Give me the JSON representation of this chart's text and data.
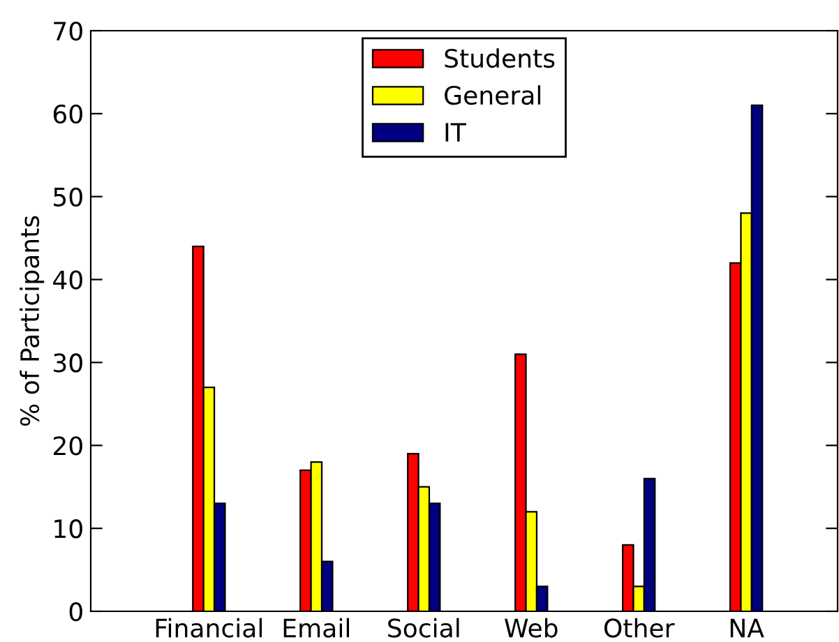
{
  "chart_data": {
    "type": "bar",
    "ylabel": "% of Participants",
    "categories": [
      "Financial",
      "Email",
      "Social",
      "Web",
      "Other",
      "NA"
    ],
    "series": [
      {
        "name": "Students",
        "color": "#ff0000",
        "values": [
          44,
          17,
          19,
          31,
          8,
          42
        ]
      },
      {
        "name": "General",
        "color": "#ffff00",
        "values": [
          27,
          18,
          15,
          12,
          3,
          48
        ]
      },
      {
        "name": "IT",
        "color": "#000080",
        "values": [
          13,
          6,
          13,
          3,
          16,
          61
        ]
      }
    ],
    "ylim": [
      0,
      70
    ],
    "yticks": [
      0,
      10,
      20,
      30,
      40,
      50,
      60,
      70
    ],
    "grid": false,
    "legend": "top"
  }
}
